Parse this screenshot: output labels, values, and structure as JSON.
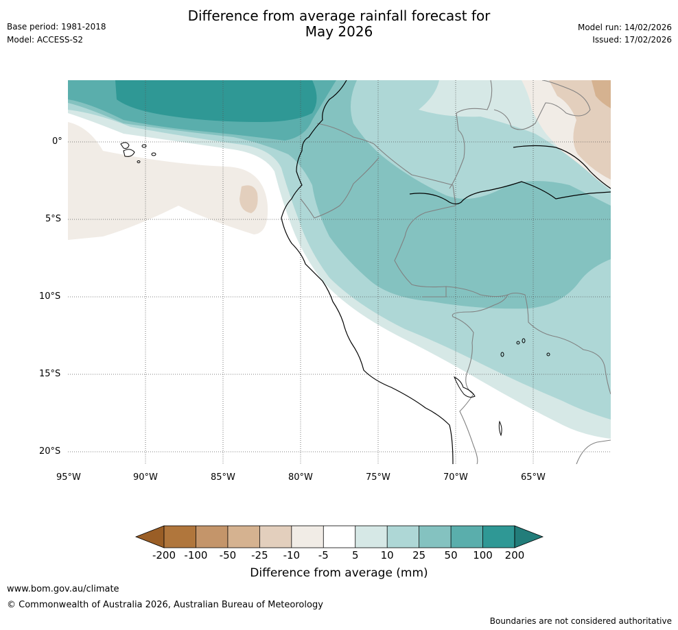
{
  "header": {
    "title_line1": "Difference from average rainfall forecast for",
    "title_line2": "May 2026",
    "base_period": "Base period: 1981-2018",
    "model": "Model: ACCESS-S2",
    "model_run": "Model run: 14/02/2026",
    "issued": "Issued: 17/02/2026"
  },
  "map": {
    "lat_labels": [
      "0°",
      "5°S",
      "10°S",
      "15°S",
      "20°S"
    ],
    "lon_labels": [
      "95°W",
      "90°W",
      "85°W",
      "80°W",
      "75°W",
      "70°W",
      "65°W"
    ]
  },
  "colorbar": {
    "title": "Difference from average (mm)",
    "ticks": [
      "-200",
      "-100",
      "-50",
      "-25",
      "-10",
      "-5",
      "5",
      "10",
      "25",
      "50",
      "100",
      "200"
    ],
    "colors": [
      "#9a5e26",
      "#b0763c",
      "#c4956a",
      "#d5b290",
      "#e3cfbd",
      "#f1ece6",
      "#ffffff",
      "#d6e8e6",
      "#aed7d6",
      "#84c2c0",
      "#5aaeac",
      "#2f9895",
      "#227d7a"
    ]
  },
  "footer": {
    "website": "www.bom.gov.au/climate",
    "copyright": "© Commonwealth of Australia 2026, Australian Bureau of Meteorology",
    "disclaimer": "Boundaries are not considered authoritative"
  }
}
